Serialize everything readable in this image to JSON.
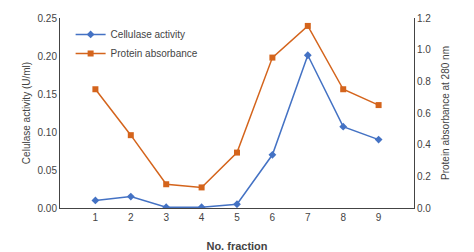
{
  "chart_data": {
    "type": "line",
    "x": [
      1,
      2,
      3,
      4,
      5,
      6,
      7,
      8,
      9
    ],
    "xlabel": "No. fraction",
    "ylabel": "Celulase activity (U/ml)",
    "y2label": "Protein absorbance at 280 nm",
    "series": [
      {
        "name": "Cellulase activity",
        "color": "#4472c4",
        "marker": "diamond",
        "line_style": "solid",
        "values": [
          0.01,
          0.015,
          0.001,
          0.001,
          0.005,
          0.07,
          0.201,
          0.107,
          0.09
        ]
      },
      {
        "name": "Protein absorbance",
        "color": "#d4641c",
        "marker": "square",
        "line_style": "solid",
        "axis": "y2",
        "values": [
          0.75,
          0.46,
          0.15,
          0.13,
          0.35,
          0.95,
          1.15,
          0.75,
          0.65
        ]
      }
    ],
    "xlim": [
      0,
      10
    ],
    "xticks": [
      1,
      2,
      3,
      4,
      5,
      6,
      7,
      8,
      9
    ],
    "ylim": [
      0,
      0.25
    ],
    "yticks": [
      {
        "value": 0,
        "label": "0.00"
      },
      0.05,
      {
        "value": 0.1,
        "label": "0.10"
      },
      0.15,
      {
        "value": 0.2,
        "label": "0.20"
      },
      0.25
    ],
    "y2lim": [
      0,
      1.2
    ],
    "y2ticks": [
      {
        "value": 0,
        "label": "0.0"
      },
      0.2,
      0.4,
      0.6,
      0.8,
      {
        "value": 1.0,
        "label": "1.0"
      },
      1.2
    ],
    "grid": false,
    "legend": "upper left"
  }
}
